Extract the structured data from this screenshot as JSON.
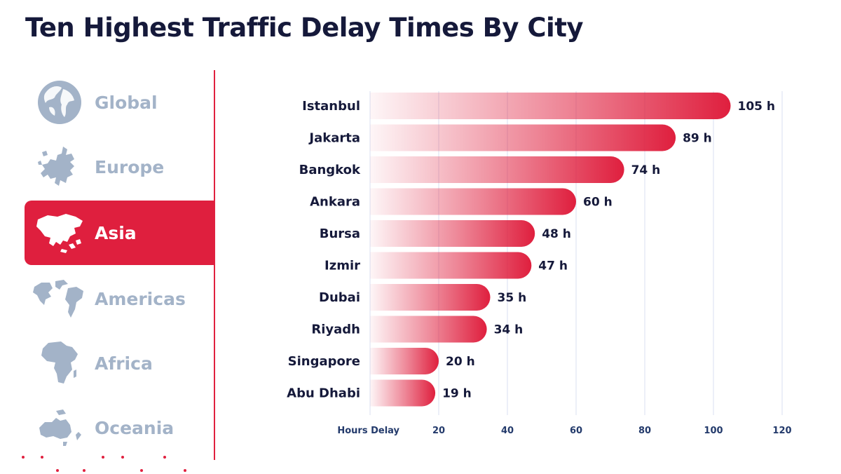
{
  "title": "Ten Highest Traffic Delay Times By City",
  "regions": [
    {
      "label": "Global",
      "icon": "globe-icon",
      "active": false
    },
    {
      "label": "Europe",
      "icon": "europe-map-icon",
      "active": false
    },
    {
      "label": "Asia",
      "icon": "asia-map-icon",
      "active": true
    },
    {
      "label": "Americas",
      "icon": "americas-map-icon",
      "active": false
    },
    {
      "label": "Africa",
      "icon": "africa-map-icon",
      "active": false
    },
    {
      "label": "Oceania",
      "icon": "oceania-map-icon",
      "active": false
    }
  ],
  "colors": {
    "accent": "#df1f3e",
    "inactive": "#a3b3c8",
    "text": "#15193a",
    "axis": "#233a6b",
    "grid": "#d9dff0"
  },
  "chart_data": {
    "type": "bar",
    "orientation": "horizontal",
    "categories": [
      "Istanbul",
      "Jakarta",
      "Bangkok",
      "Ankara",
      "Bursa",
      "Izmir",
      "Dubai",
      "Riyadh",
      "Singapore",
      "Abu Dhabi"
    ],
    "values": [
      105,
      89,
      74,
      60,
      48,
      47,
      35,
      34,
      20,
      19
    ],
    "value_labels": [
      "105 h",
      "89 h",
      "74 h",
      "60 h",
      "48 h",
      "47 h",
      "35 h",
      "34 h",
      "20 h",
      "19 h"
    ],
    "xlabel": "Hours Delay",
    "xticks": [
      20,
      40,
      60,
      80,
      100,
      120
    ],
    "xlim": [
      0,
      120
    ],
    "grid": true,
    "legend": "none"
  }
}
